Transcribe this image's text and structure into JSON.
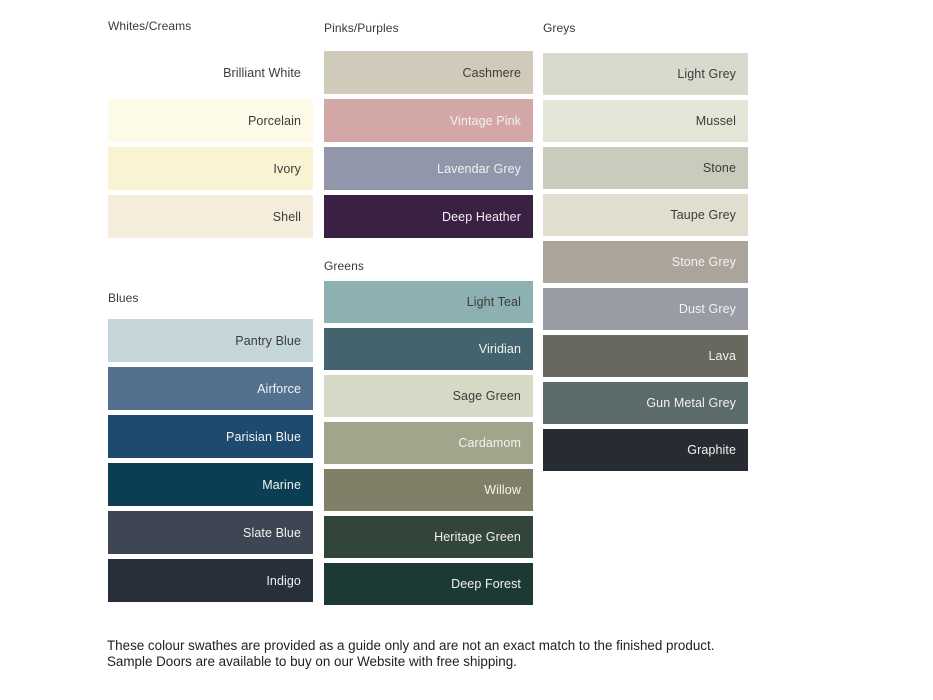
{
  "text_colors": {
    "dark": "#3d3c39",
    "light": "#f3f2ef",
    "header": "#3b3a38"
  },
  "palette_columns": [
    {
      "id": "column-whites-blues",
      "sections": [
        {
          "title": "Whites/Creams",
          "swatches": [
            {
              "name": "Brilliant White",
              "bg": "#ffffff",
              "text_tone": "dark"
            },
            {
              "name": "Porcelain",
              "bg": "#fdfbe8",
              "text_tone": "dark"
            },
            {
              "name": "Ivory",
              "bg": "#faf3d1",
              "text_tone": "dark"
            },
            {
              "name": "Shell",
              "bg": "#f5ecdc",
              "text_tone": "dark"
            }
          ]
        },
        {
          "title": "Blues",
          "swatches": [
            {
              "name": "Pantry Blue",
              "bg": "#c4d6da",
              "text_tone": "dark"
            },
            {
              "name": "Airforce",
              "bg": "#53718e",
              "text_tone": "light"
            },
            {
              "name": "Parisian Blue",
              "bg": "#1d4b70",
              "text_tone": "light"
            },
            {
              "name": "Marine",
              "bg": "#0b3e53",
              "text_tone": "light"
            },
            {
              "name": "Slate Blue",
              "bg": "#3f4653",
              "text_tone": "light"
            },
            {
              "name": "Indigo",
              "bg": "#262f3a",
              "text_tone": "light"
            }
          ]
        }
      ]
    },
    {
      "id": "column-pinks-greens",
      "sections": [
        {
          "title": "Pinks/Purples",
          "swatches": [
            {
              "name": "Cashmere",
              "bg": "#cfcaba",
              "text_tone": "dark"
            },
            {
              "name": "Vintage Pink",
              "bg": "#d3a7a6",
              "text_tone": "light"
            },
            {
              "name": "Lavendar Grey",
              "bg": "#9196ab",
              "text_tone": "light"
            },
            {
              "name": "Deep Heather",
              "bg": "#3a2144",
              "text_tone": "light"
            }
          ]
        },
        {
          "title": "Greens",
          "swatches": [
            {
              "name": "Light Teal",
              "bg": "#8db1b2",
              "text_tone": "dark"
            },
            {
              "name": "Viridian",
              "bg": "#43646e",
              "text_tone": "light"
            },
            {
              "name": "Sage Green",
              "bg": "#d5dac6",
              "text_tone": "dark"
            },
            {
              "name": "Cardamom",
              "bg": "#a2a58b",
              "text_tone": "light"
            },
            {
              "name": "Willow",
              "bg": "#817f67",
              "text_tone": "light"
            },
            {
              "name": "Heritage Green",
              "bg": "#32453b",
              "text_tone": "light"
            },
            {
              "name": "Deep Forest",
              "bg": "#1c3a33",
              "text_tone": "light"
            }
          ]
        }
      ]
    },
    {
      "id": "column-greys",
      "sections": [
        {
          "title": "Greys",
          "swatches": [
            {
              "name": "Light Grey",
              "bg": "#d9dacd",
              "text_tone": "dark"
            },
            {
              "name": "Mussel",
              "bg": "#e4e6d8",
              "text_tone": "dark"
            },
            {
              "name": "Stone",
              "bg": "#c9ccbc",
              "text_tone": "dark"
            },
            {
              "name": "Taupe Grey",
              "bg": "#e1ddcf",
              "text_tone": "dark"
            },
            {
              "name": "Stone Grey",
              "bg": "#aba49b",
              "text_tone": "light"
            },
            {
              "name": "Dust Grey",
              "bg": "#999ca4",
              "text_tone": "light"
            },
            {
              "name": "Lava",
              "bg": "#68685e",
              "text_tone": "light"
            },
            {
              "name": "Gun Metal Grey",
              "bg": "#5a6b69",
              "text_tone": "light"
            },
            {
              "name": "Graphite",
              "bg": "#272c32",
              "text_tone": "light"
            }
          ]
        }
      ]
    }
  ],
  "footer": {
    "text": "These colour swathes are provided as a guide only and are not an exact match to the finished product.  Sample Doors are available to buy on our Website with free shipping."
  }
}
